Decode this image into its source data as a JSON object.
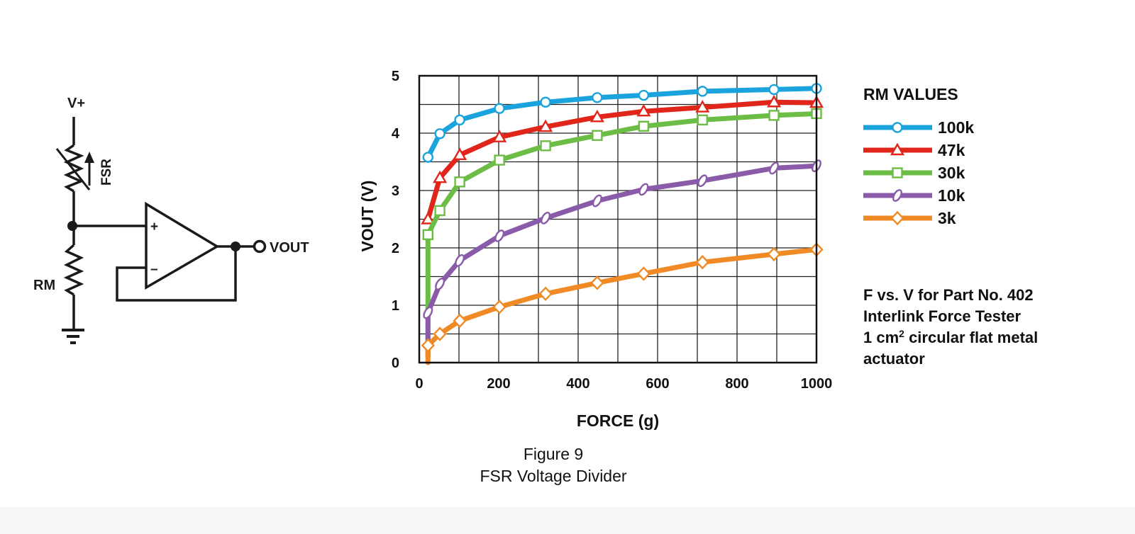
{
  "schematic": {
    "vplus_label": "V+",
    "fsr_label": "FSR",
    "rm_label": "RM",
    "plus_sign": "+",
    "minus_sign": "–",
    "vout_label": "VOUT"
  },
  "chart_data": {
    "type": "line",
    "xlabel": "FORCE (g)",
    "ylabel": "VOUT (V)",
    "xlim": [
      0,
      1000
    ],
    "ylim": [
      0,
      5
    ],
    "xticks": [
      0,
      200,
      400,
      600,
      800,
      1000
    ],
    "yticks": [
      0,
      1,
      2,
      3,
      4,
      5
    ],
    "grid": true,
    "legend_title": "RM VALUES",
    "legend_position": "right",
    "series": [
      {
        "name": "100k",
        "color": "#1aa3dc",
        "marker": "circle",
        "x": [
          22,
          52,
          102,
          202,
          318,
          448,
          565,
          713,
          893,
          1000
        ],
        "y": [
          3.58,
          3.99,
          4.23,
          4.43,
          4.54,
          4.62,
          4.66,
          4.73,
          4.76,
          4.78
        ]
      },
      {
        "name": "47k",
        "color": "#e0261b",
        "marker": "triangle",
        "x": [
          22,
          52,
          102,
          202,
          318,
          448,
          565,
          713,
          893,
          1000
        ],
        "y": [
          2.5,
          3.22,
          3.62,
          3.93,
          4.11,
          4.28,
          4.38,
          4.45,
          4.54,
          4.53
        ]
      },
      {
        "name": "30k",
        "color": "#6cbd45",
        "marker": "square",
        "x": [
          22,
          22,
          52,
          102,
          202,
          318,
          448,
          565,
          713,
          893,
          1000
        ],
        "y": [
          0.1,
          2.23,
          2.65,
          3.15,
          3.53,
          3.78,
          3.96,
          4.12,
          4.23,
          4.31,
          4.34
        ]
      },
      {
        "name": "10k",
        "color": "#8a5ba8",
        "marker": "oval",
        "x": [
          22,
          22,
          52,
          102,
          202,
          318,
          448,
          565,
          713,
          893,
          1000
        ],
        "y": [
          0.1,
          0.87,
          1.37,
          1.78,
          2.21,
          2.52,
          2.82,
          3.02,
          3.17,
          3.39,
          3.43
        ]
      },
      {
        "name": "3k",
        "color": "#f08a24",
        "marker": "diamond",
        "x": [
          22,
          22,
          52,
          102,
          202,
          318,
          448,
          565,
          713,
          893,
          1000
        ],
        "y": [
          0.0,
          0.3,
          0.5,
          0.73,
          0.97,
          1.2,
          1.39,
          1.55,
          1.75,
          1.89,
          1.97
        ]
      }
    ]
  },
  "note": {
    "line1": "F vs. V for Part No. 402",
    "line2": "Interlink Force Tester",
    "line3_prefix": "1 cm",
    "line3_sup": "2",
    "line3_suffix": " circular flat metal",
    "line4": "actuator"
  },
  "caption": {
    "line1": "Figure 9",
    "line2": "FSR Voltage Divider"
  }
}
